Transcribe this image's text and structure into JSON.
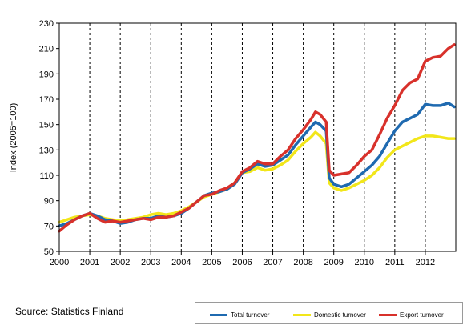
{
  "source_text": "Source: Statistics Finland",
  "chart_data": {
    "type": "line",
    "ylabel": "Index (2005=100)",
    "xlabel": "",
    "title": "",
    "ylim": [
      50,
      230
    ],
    "yticks": [
      50,
      70,
      90,
      110,
      130,
      150,
      170,
      190,
      210,
      230
    ],
    "xlim": [
      2000,
      2013
    ],
    "xticks": [
      "2000",
      "2001",
      "2002",
      "2003",
      "2004",
      "2005",
      "2006",
      "2007",
      "2008",
      "2009",
      "2010",
      "2011",
      "2012"
    ],
    "grid": "vertical dashed at year boundaries",
    "legend_position": "bottom-right",
    "series": [
      {
        "name": "Total turnover",
        "color": "#1f6ab0",
        "points": [
          [
            2000.0,
            70
          ],
          [
            2000.25,
            72
          ],
          [
            2000.5,
            75
          ],
          [
            2000.75,
            78
          ],
          [
            2001.0,
            80
          ],
          [
            2001.25,
            78
          ],
          [
            2001.5,
            75
          ],
          [
            2001.75,
            74
          ],
          [
            2002.0,
            72
          ],
          [
            2002.25,
            73
          ],
          [
            2002.5,
            75
          ],
          [
            2002.75,
            76
          ],
          [
            2003.0,
            76
          ],
          [
            2003.25,
            78
          ],
          [
            2003.5,
            77
          ],
          [
            2003.75,
            78
          ],
          [
            2004.0,
            80
          ],
          [
            2004.25,
            84
          ],
          [
            2004.5,
            89
          ],
          [
            2004.75,
            94
          ],
          [
            2005.0,
            96
          ],
          [
            2005.25,
            97
          ],
          [
            2005.5,
            99
          ],
          [
            2005.75,
            103
          ],
          [
            2006.0,
            112
          ],
          [
            2006.25,
            115
          ],
          [
            2006.5,
            119
          ],
          [
            2006.75,
            117
          ],
          [
            2007.0,
            118
          ],
          [
            2007.25,
            122
          ],
          [
            2007.5,
            126
          ],
          [
            2007.75,
            134
          ],
          [
            2008.0,
            141
          ],
          [
            2008.25,
            148
          ],
          [
            2008.4,
            152
          ],
          [
            2008.55,
            150
          ],
          [
            2008.75,
            145
          ],
          [
            2008.85,
            108
          ],
          [
            2009.0,
            103
          ],
          [
            2009.25,
            101
          ],
          [
            2009.5,
            103
          ],
          [
            2009.75,
            108
          ],
          [
            2010.0,
            113
          ],
          [
            2010.25,
            118
          ],
          [
            2010.5,
            125
          ],
          [
            2010.75,
            135
          ],
          [
            2011.0,
            145
          ],
          [
            2011.25,
            152
          ],
          [
            2011.5,
            155
          ],
          [
            2011.75,
            158
          ],
          [
            2012.0,
            166
          ],
          [
            2012.25,
            165
          ],
          [
            2012.5,
            165
          ],
          [
            2012.75,
            167
          ],
          [
            2012.95,
            164
          ]
        ]
      },
      {
        "name": "Domestic turnover",
        "color": "#f2e61a",
        "points": [
          [
            2000.0,
            73
          ],
          [
            2000.25,
            75
          ],
          [
            2000.5,
            77
          ],
          [
            2000.75,
            78
          ],
          [
            2001.0,
            79
          ],
          [
            2001.25,
            78
          ],
          [
            2001.5,
            76
          ],
          [
            2001.75,
            75
          ],
          [
            2002.0,
            74
          ],
          [
            2002.25,
            75
          ],
          [
            2002.5,
            76
          ],
          [
            2002.75,
            77
          ],
          [
            2003.0,
            79
          ],
          [
            2003.25,
            80
          ],
          [
            2003.5,
            79
          ],
          [
            2003.75,
            80
          ],
          [
            2004.0,
            82
          ],
          [
            2004.25,
            85
          ],
          [
            2004.5,
            89
          ],
          [
            2004.75,
            93
          ],
          [
            2005.0,
            95
          ],
          [
            2005.25,
            97
          ],
          [
            2005.5,
            99
          ],
          [
            2005.75,
            104
          ],
          [
            2006.0,
            112
          ],
          [
            2006.25,
            113
          ],
          [
            2006.5,
            116
          ],
          [
            2006.75,
            114
          ],
          [
            2007.0,
            115
          ],
          [
            2007.25,
            118
          ],
          [
            2007.5,
            122
          ],
          [
            2007.75,
            129
          ],
          [
            2008.0,
            135
          ],
          [
            2008.25,
            140
          ],
          [
            2008.4,
            144
          ],
          [
            2008.55,
            141
          ],
          [
            2008.75,
            135
          ],
          [
            2008.85,
            104
          ],
          [
            2009.0,
            100
          ],
          [
            2009.25,
            98
          ],
          [
            2009.5,
            100
          ],
          [
            2009.75,
            103
          ],
          [
            2010.0,
            106
          ],
          [
            2010.25,
            110
          ],
          [
            2010.5,
            116
          ],
          [
            2010.75,
            124
          ],
          [
            2011.0,
            130
          ],
          [
            2011.25,
            133
          ],
          [
            2011.5,
            136
          ],
          [
            2011.75,
            139
          ],
          [
            2012.0,
            141
          ],
          [
            2012.25,
            141
          ],
          [
            2012.5,
            140
          ],
          [
            2012.75,
            139
          ],
          [
            2012.95,
            139
          ]
        ]
      },
      {
        "name": "Export turnover",
        "color": "#d8312b",
        "points": [
          [
            2000.0,
            66
          ],
          [
            2000.25,
            71
          ],
          [
            2000.5,
            75
          ],
          [
            2000.75,
            78
          ],
          [
            2001.0,
            80
          ],
          [
            2001.25,
            76
          ],
          [
            2001.5,
            73
          ],
          [
            2001.75,
            74
          ],
          [
            2002.0,
            73
          ],
          [
            2002.25,
            74
          ],
          [
            2002.5,
            75
          ],
          [
            2002.75,
            76
          ],
          [
            2003.0,
            75
          ],
          [
            2003.25,
            77
          ],
          [
            2003.5,
            77
          ],
          [
            2003.75,
            78
          ],
          [
            2004.0,
            81
          ],
          [
            2004.25,
            84
          ],
          [
            2004.5,
            89
          ],
          [
            2004.75,
            94
          ],
          [
            2005.0,
            95
          ],
          [
            2005.25,
            98
          ],
          [
            2005.5,
            100
          ],
          [
            2005.75,
            104
          ],
          [
            2006.0,
            113
          ],
          [
            2006.25,
            116
          ],
          [
            2006.5,
            121
          ],
          [
            2006.75,
            119
          ],
          [
            2007.0,
            119
          ],
          [
            2007.25,
            125
          ],
          [
            2007.5,
            130
          ],
          [
            2007.75,
            139
          ],
          [
            2008.0,
            146
          ],
          [
            2008.25,
            154
          ],
          [
            2008.4,
            160
          ],
          [
            2008.55,
            158
          ],
          [
            2008.75,
            152
          ],
          [
            2008.85,
            114
          ],
          [
            2009.0,
            110
          ],
          [
            2009.25,
            111
          ],
          [
            2009.5,
            112
          ],
          [
            2009.75,
            118
          ],
          [
            2010.0,
            125
          ],
          [
            2010.25,
            130
          ],
          [
            2010.5,
            142
          ],
          [
            2010.75,
            155
          ],
          [
            2011.0,
            165
          ],
          [
            2011.25,
            177
          ],
          [
            2011.5,
            183
          ],
          [
            2011.75,
            186
          ],
          [
            2012.0,
            200
          ],
          [
            2012.25,
            203
          ],
          [
            2012.5,
            204
          ],
          [
            2012.75,
            210
          ],
          [
            2012.95,
            213
          ]
        ]
      }
    ]
  }
}
